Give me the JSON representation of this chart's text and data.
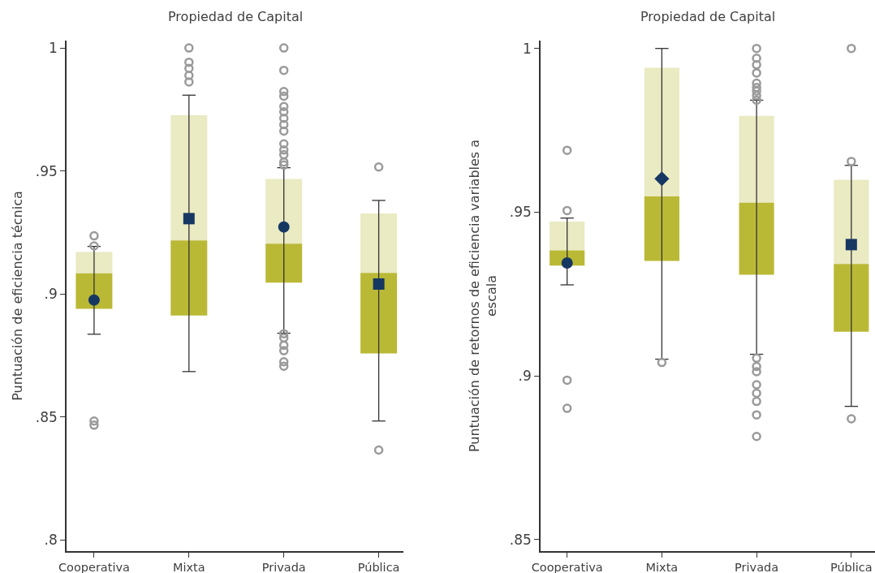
{
  "chart_data": [
    {
      "type": "box",
      "title": "Propiedad de Capital",
      "ylabel": "Puntuación de eficiencia técnica",
      "categories": [
        "Cooperativa",
        "Mixta",
        "Privada",
        "Pública"
      ],
      "color": "#bab936",
      "boxes": [
        {
          "low": 0.8836,
          "q1": 0.8939,
          "median": 0.9084,
          "q3": 0.917,
          "high": 0.9193,
          "outliers": [
            0.9236,
            0.9195,
            0.8483,
            0.8466
          ]
        },
        {
          "low": 0.8684,
          "q1": 0.8912,
          "median": 0.9217,
          "q3": 0.9726,
          "high": 0.9808,
          "outliers": [
            1.0,
            0.9942,
            0.9917,
            0.9888,
            0.9862
          ]
        },
        {
          "low": 0.884,
          "q1": 0.9046,
          "median": 0.9204,
          "q3": 0.9467,
          "high": 0.9513,
          "outliers": [
            1.0,
            0.9909,
            0.9823,
            0.9804,
            0.9762,
            0.974,
            0.9714,
            0.9688,
            0.9662,
            0.961,
            0.9585,
            0.9566,
            0.9536,
            0.9524,
            0.8838,
            0.8821,
            0.8791,
            0.8769,
            0.8724,
            0.8706
          ]
        },
        {
          "low": 0.8483,
          "q1": 0.8758,
          "median": 0.9085,
          "q3": 0.9327,
          "high": 0.938,
          "outliers": [
            0.9516,
            0.8365
          ]
        }
      ],
      "series": [
        {
          "type": "scatter",
          "marker": "circle",
          "color": "#173763",
          "values": [
            0.8975,
            null,
            0.9272,
            null
          ]
        },
        {
          "type": "scatter",
          "marker": "square",
          "color": "#173763",
          "values": [
            null,
            0.9306,
            null,
            0.904
          ]
        }
      ],
      "ylim": [
        0.7954,
        1.003
      ],
      "yticks": [
        {
          "value": 0.8,
          "label": ".8"
        },
        {
          "value": 0.85,
          "label": ".85"
        },
        {
          "value": 0.9,
          "label": ".9"
        },
        {
          "value": 0.95,
          "label": ".95"
        },
        1
      ]
    },
    {
      "type": "box",
      "title": "Propiedad de Capital",
      "ylabel": "Puntuación de retornos de eficiencia variables a escala",
      "categories": [
        "Cooperativa",
        "Mixta",
        "Privada",
        "Pública"
      ],
      "color": "#bab936",
      "boxes": [
        {
          "low": 0.9278,
          "q1": 0.9337,
          "median": 0.9383,
          "q3": 0.9471,
          "high": 0.9482,
          "outliers": [
            0.9689,
            0.9505,
            0.8987,
            0.8901
          ]
        },
        {
          "low": 0.9051,
          "q1": 0.9351,
          "median": 0.9548,
          "q3": 0.9941,
          "high": 1.0,
          "outliers": [
            0.9041
          ]
        },
        {
          "low": 0.9066,
          "q1": 0.9309,
          "median": 0.9529,
          "q3": 0.9794,
          "high": 0.9842,
          "outliers": [
            1.0,
            0.997,
            0.995,
            0.9925,
            0.9894,
            0.9881,
            0.987,
            0.9856,
            0.9842,
            0.9054,
            0.9029,
            0.9013,
            0.8973,
            0.8947,
            0.8922,
            0.8881,
            0.8815
          ]
        },
        {
          "low": 0.8907,
          "q1": 0.9135,
          "median": 0.9342,
          "q3": 0.9599,
          "high": 0.9643,
          "outliers": [
            1.0,
            0.9655,
            0.8869
          ]
        }
      ],
      "series": [
        {
          "type": "scatter",
          "marker": "circle",
          "color": "#173763",
          "values": [
            0.9345,
            null,
            null,
            null
          ]
        },
        {
          "type": "scatter",
          "marker": "diamond",
          "color": "#173763",
          "values": [
            null,
            0.9602,
            null,
            null
          ]
        },
        {
          "type": "scatter",
          "marker": "square",
          "color": "#173763",
          "values": [
            null,
            null,
            null,
            0.9401
          ]
        }
      ],
      "ylim": [
        0.8465,
        1.0024
      ],
      "yticks": [
        {
          "value": 0.85,
          "label": ".85"
        },
        {
          "value": 0.9,
          "label": ".9"
        },
        {
          "value": 0.95,
          "label": ".95"
        },
        1
      ]
    }
  ]
}
